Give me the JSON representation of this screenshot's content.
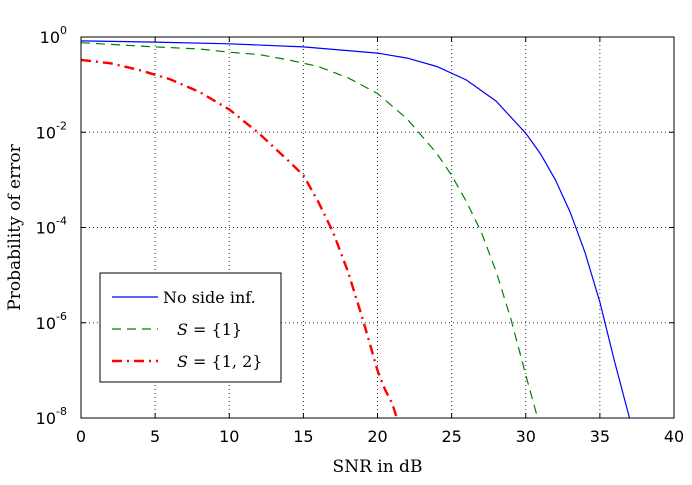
{
  "chart_data": {
    "type": "line",
    "xlabel": "SNR in dB",
    "ylabel": "Probability of error",
    "xlim": [
      0,
      40
    ],
    "ylim": [
      1e-08,
      1
    ],
    "yscale": "log",
    "grid": true,
    "legend_position": "bottom-left",
    "x_ticks": [
      "0",
      "5",
      "10",
      "15",
      "20",
      "25",
      "30",
      "35",
      "40"
    ],
    "y_ticks": [
      {
        "base": "10",
        "exp": "0"
      },
      {
        "base": "10",
        "exp": "-2"
      },
      {
        "base": "10",
        "exp": "-4"
      },
      {
        "base": "10",
        "exp": "-6"
      },
      {
        "base": "10",
        "exp": "-8"
      }
    ],
    "series": [
      {
        "name": "No side inf.",
        "color": "#0000ff",
        "style": "solid",
        "points": [
          [
            0,
            0.83
          ],
          [
            5,
            0.78
          ],
          [
            10,
            0.72
          ],
          [
            15,
            0.62
          ],
          [
            20,
            0.46
          ],
          [
            22,
            0.36
          ],
          [
            24,
            0.24
          ],
          [
            26,
            0.125
          ],
          [
            28,
            0.045
          ],
          [
            30,
            0.0095
          ],
          [
            31,
            0.0035
          ],
          [
            32,
            0.001
          ],
          [
            33,
            0.00021
          ],
          [
            34,
            3e-05
          ],
          [
            35,
            2.7e-06
          ],
          [
            36,
            1.5e-07
          ],
          [
            37,
            1e-08
          ]
        ]
      },
      {
        "name": "S = {1}",
        "color": "#008000",
        "style": "dashed",
        "points": [
          [
            0,
            0.76
          ],
          [
            5,
            0.62
          ],
          [
            8,
            0.56
          ],
          [
            10,
            0.48
          ],
          [
            12,
            0.43
          ],
          [
            14,
            0.33
          ],
          [
            16,
            0.24
          ],
          [
            18,
            0.14
          ],
          [
            20,
            0.065
          ],
          [
            22,
            0.019
          ],
          [
            24,
            0.0036
          ],
          [
            25,
            0.00125
          ],
          [
            26,
            0.00035
          ],
          [
            27,
            8e-05
          ],
          [
            28,
            1.2e-05
          ],
          [
            29,
            1.2e-06
          ],
          [
            30,
            8e-08
          ],
          [
            30.8,
            1e-08
          ]
        ]
      },
      {
        "name": "S = {1, 2}",
        "color": "#ff0000",
        "style": "dashdot",
        "points": [
          [
            0,
            0.33
          ],
          [
            2,
            0.28
          ],
          [
            4,
            0.2
          ],
          [
            6,
            0.13
          ],
          [
            8,
            0.07
          ],
          [
            10,
            0.03
          ],
          [
            12,
            0.0095
          ],
          [
            14,
            0.0025
          ],
          [
            15,
            0.00125
          ],
          [
            16,
            0.00035
          ],
          [
            17,
            8e-05
          ],
          [
            18,
            1.2e-05
          ],
          [
            19,
            1.2e-06
          ],
          [
            20,
            1e-07
          ],
          [
            20.5,
            4e-08
          ],
          [
            21,
            2e-08
          ],
          [
            21.3,
            1e-08
          ]
        ]
      }
    ],
    "legend": [
      {
        "label": "No side inf.",
        "math": false
      },
      {
        "label": "S = {1}",
        "math": true,
        "var": "S",
        "rest": " = {1}"
      },
      {
        "label": "S = {1, 2}",
        "math": true,
        "var": "S",
        "rest": " = {1, 2}"
      }
    ]
  }
}
